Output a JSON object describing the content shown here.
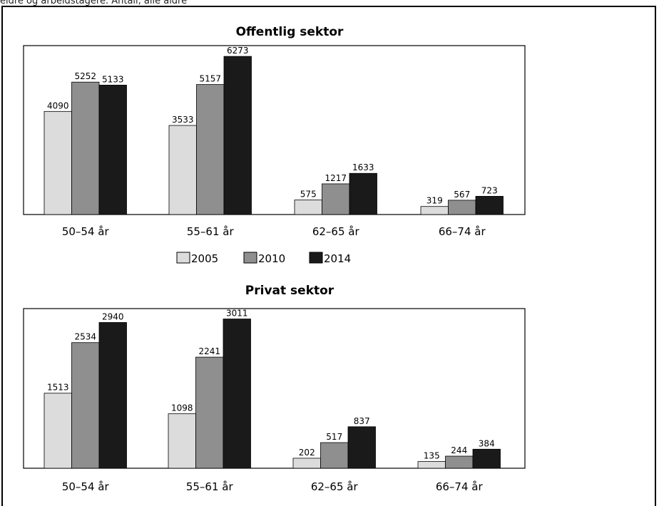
{
  "caption": "eldre og arbeidstagere. Antall, alle aldre",
  "colors": {
    "2005": "#dcdcdc",
    "2010": "#8f8f8f",
    "2014": "#1a1a1a"
  },
  "chart_data": [
    {
      "type": "bar",
      "title": "Offentlig sektor",
      "categories": [
        "50–54 år",
        "55–61 år",
        "62–65 år",
        "66–74 år"
      ],
      "series": [
        {
          "name": "2005",
          "values": [
            4090,
            3533,
            575,
            319
          ]
        },
        {
          "name": "2010",
          "values": [
            5252,
            5157,
            1217,
            567
          ]
        },
        {
          "name": "2014",
          "values": [
            5133,
            6273,
            1633,
            723
          ]
        }
      ],
      "ylim": [
        0,
        6700
      ]
    },
    {
      "type": "bar",
      "title": "Privat sektor",
      "categories": [
        "50–54 år",
        "55–61 år",
        "62–65 år",
        "66–74 år"
      ],
      "series": [
        {
          "name": "2005",
          "values": [
            1513,
            1098,
            202,
            135
          ]
        },
        {
          "name": "2010",
          "values": [
            2534,
            2241,
            517,
            244
          ]
        },
        {
          "name": "2014",
          "values": [
            2940,
            3011,
            837,
            384
          ]
        }
      ],
      "ylim": [
        0,
        3220
      ]
    }
  ],
  "legend": [
    "2005",
    "2010",
    "2014"
  ]
}
